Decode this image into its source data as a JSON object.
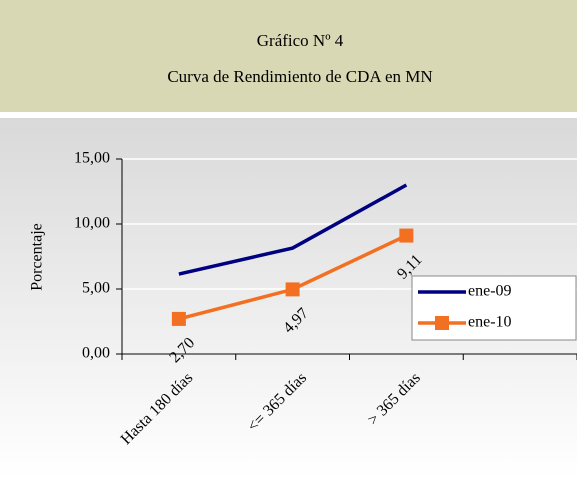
{
  "chart_data": {
    "type": "line",
    "title_lines": [
      "Gráfico Nº 4",
      "Curva de Rendimiento de CDA en MN"
    ],
    "ylabel": "Porcentaje",
    "categories": [
      "Hasta 180 días",
      "<= 365 días",
      "> 365 días",
      null
    ],
    "series": [
      {
        "name": "ene-09",
        "color": "#000080",
        "values": [
          6.15,
          8.15,
          13.0,
          null
        ]
      },
      {
        "name": "ene-10",
        "color": "#f36f21",
        "marker": "square",
        "values": [
          2.7,
          4.97,
          9.11,
          null
        ],
        "value_labels": [
          "2,70",
          "4,97",
          "9,11",
          null
        ]
      }
    ],
    "ylim": [
      0,
      15
    ],
    "yticks": [
      {
        "value": 0,
        "label": "0,00"
      },
      {
        "value": 5,
        "label": "5,00"
      },
      {
        "value": 10,
        "label": "10,00"
      },
      {
        "value": 15,
        "label": "15,00"
      }
    ],
    "grid": true,
    "legend": "right"
  }
}
